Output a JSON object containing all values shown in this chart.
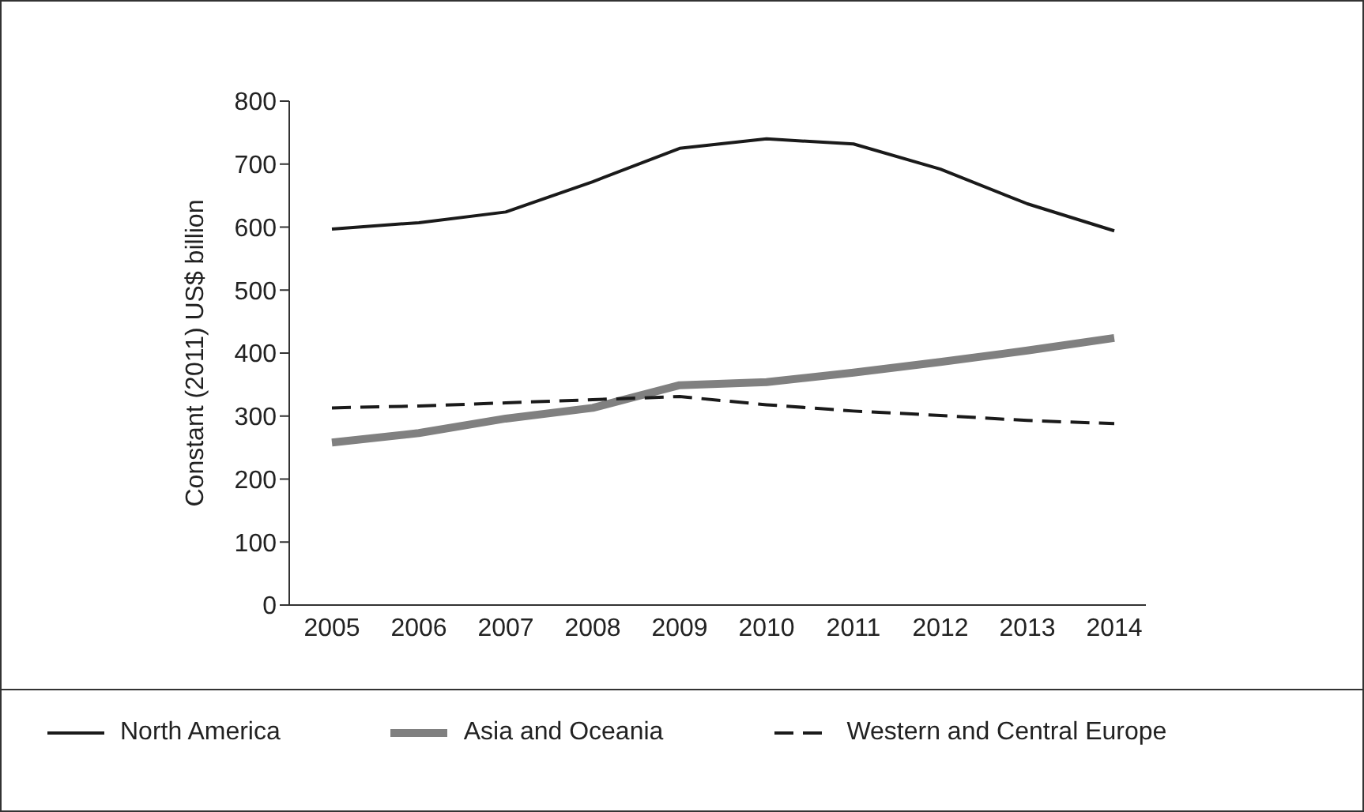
{
  "chart_data": {
    "type": "line",
    "ylabel": "Constant (2011) US$ billion",
    "categories": [
      "2005",
      "2006",
      "2007",
      "2008",
      "2009",
      "2010",
      "2011",
      "2012",
      "2013",
      "2014"
    ],
    "series": [
      {
        "name": "North America",
        "color": "#1a1a1a",
        "line_style": "solid",
        "values": [
          597,
          607,
          624,
          672,
          725,
          740,
          732,
          692,
          637,
          594
        ]
      },
      {
        "name": "Asia and Oceania",
        "color": "#808080",
        "line_style": "solid",
        "values": [
          258,
          273,
          296,
          313,
          349,
          354,
          369,
          386,
          404,
          424
        ]
      },
      {
        "name": "Western and Central Europe",
        "color": "#1a1a1a",
        "line_style": "dashed",
        "values": [
          313,
          316,
          321,
          326,
          331,
          318,
          308,
          301,
          293,
          288
        ]
      }
    ],
    "ylim": [
      0,
      800
    ],
    "yticks": [
      0,
      100,
      200,
      300,
      400,
      500,
      600,
      700,
      800
    ],
    "grid": false,
    "legend": "bottom",
    "marker": "none"
  }
}
